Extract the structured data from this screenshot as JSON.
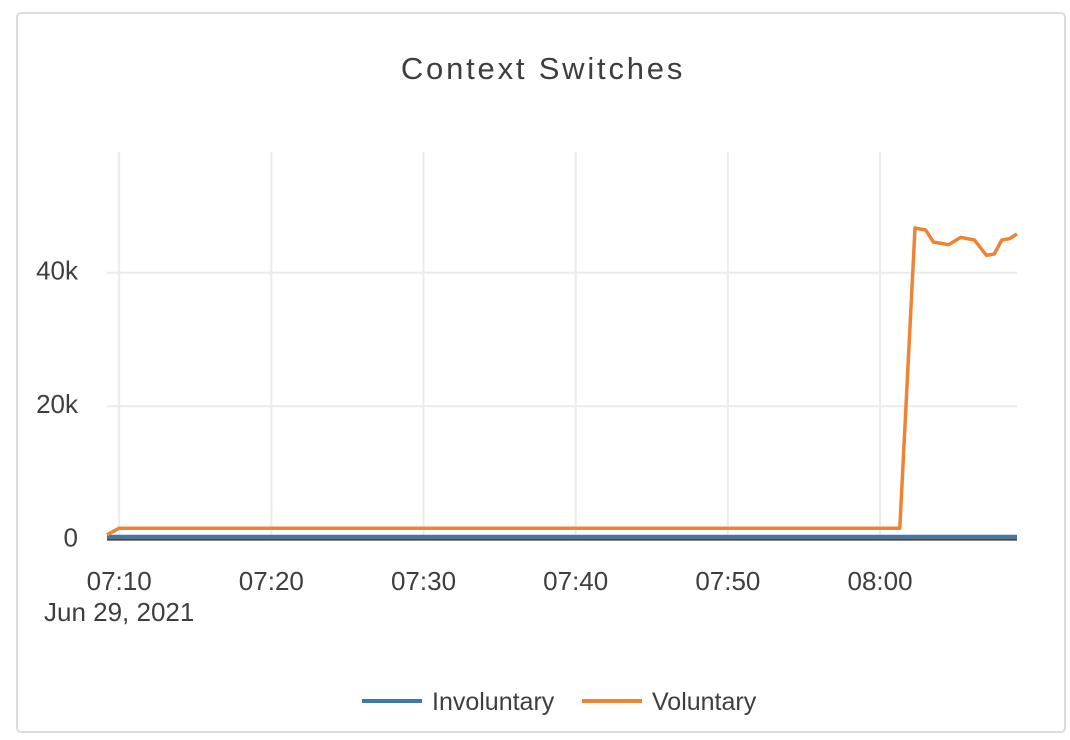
{
  "card": {
    "background": "#ffffff",
    "border_color": "#dcdcdc"
  },
  "title": {
    "text": "Context Switches",
    "color": "#3e3e3e"
  },
  "legend": {
    "items": [
      {
        "label": "Involuntary",
        "color": "#3d78ad"
      },
      {
        "label": "Voluntary",
        "color": "#ee8433"
      }
    ]
  },
  "chart_data": {
    "type": "line",
    "title": "Context Switches",
    "x_axis": {
      "tick_labels": [
        "07:10",
        "07:20",
        "07:30",
        "07:40",
        "07:50",
        "08:00"
      ],
      "tick_minutes": [
        10,
        20,
        30,
        40,
        50,
        60
      ],
      "date_label": "Jun 29, 2021",
      "range_minutes": [
        9.2,
        69
      ]
    },
    "y_axis": {
      "tick_labels": [
        "0",
        "20k",
        "40k"
      ],
      "tick_values": [
        0,
        20000,
        40000
      ],
      "range": [
        0,
        58100
      ]
    },
    "grid": true,
    "grid_color": "#ebebeb",
    "zero_line_color": "#444444",
    "legend_position": "bottom-center",
    "series": [
      {
        "name": "Involuntary",
        "color": "#3d78ad",
        "x": [
          9.2,
          69
        ],
        "y": [
          450,
          450
        ]
      },
      {
        "name": "Voluntary",
        "color": "#ee8433",
        "x": [
          9.2,
          10,
          20,
          30,
          40,
          50,
          60,
          61.3,
          62.3,
          63,
          63.5,
          64.5,
          65.3,
          66.2,
          67,
          67.5,
          68,
          68.5,
          69
        ],
        "y": [
          700,
          1700,
          1700,
          1700,
          1700,
          1700,
          1700,
          1700,
          46700,
          46400,
          44600,
          44200,
          45300,
          44900,
          42600,
          42800,
          44900,
          45100,
          45800
        ]
      }
    ]
  }
}
